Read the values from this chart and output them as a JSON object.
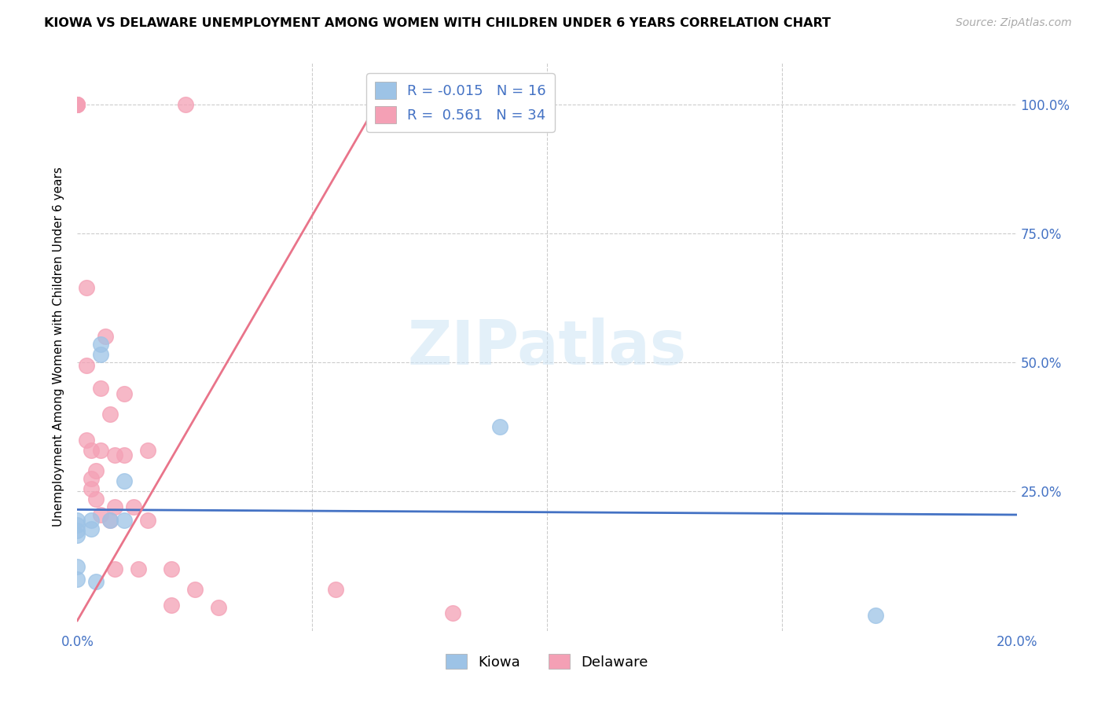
{
  "title": "KIOWA VS DELAWARE UNEMPLOYMENT AMONG WOMEN WITH CHILDREN UNDER 6 YEARS CORRELATION CHART",
  "source": "Source: ZipAtlas.com",
  "ylabel": "Unemployment Among Women with Children Under 6 years",
  "kiowa_R": -0.015,
  "kiowa_N": 16,
  "delaware_R": 0.561,
  "delaware_N": 34,
  "kiowa_color": "#9dc3e6",
  "delaware_color": "#f4a0b5",
  "kiowa_line_color": "#4472c4",
  "delaware_line_color": "#e9748a",
  "xlim": [
    0.0,
    0.2
  ],
  "ylim": [
    -0.02,
    1.08
  ],
  "kiowa_x": [
    0.0,
    0.0,
    0.0,
    0.0,
    0.0,
    0.0,
    0.003,
    0.003,
    0.004,
    0.005,
    0.005,
    0.007,
    0.01,
    0.01,
    0.09,
    0.17
  ],
  "kiowa_y": [
    0.195,
    0.185,
    0.175,
    0.165,
    0.105,
    0.08,
    0.195,
    0.178,
    0.075,
    0.535,
    0.515,
    0.195,
    0.27,
    0.195,
    0.375,
    0.01
  ],
  "delaware_x": [
    0.0,
    0.0,
    0.0,
    0.0,
    0.002,
    0.002,
    0.002,
    0.003,
    0.003,
    0.003,
    0.004,
    0.004,
    0.005,
    0.005,
    0.005,
    0.006,
    0.007,
    0.007,
    0.008,
    0.008,
    0.008,
    0.01,
    0.01,
    0.012,
    0.013,
    0.015,
    0.015,
    0.02,
    0.02,
    0.023,
    0.025,
    0.03,
    0.055,
    0.08
  ],
  "delaware_y": [
    1.0,
    1.0,
    1.0,
    1.0,
    0.645,
    0.495,
    0.35,
    0.33,
    0.275,
    0.255,
    0.29,
    0.235,
    0.45,
    0.33,
    0.205,
    0.55,
    0.4,
    0.195,
    0.32,
    0.22,
    0.1,
    0.44,
    0.32,
    0.22,
    0.1,
    0.33,
    0.195,
    0.1,
    0.03,
    1.0,
    0.06,
    0.025,
    0.06,
    0.015
  ],
  "kiowa_line_x": [
    0.0,
    0.2
  ],
  "kiowa_line_y": [
    0.215,
    0.205
  ],
  "delaware_line_x": [
    0.0,
    0.065
  ],
  "delaware_line_y": [
    0.0,
    1.02
  ]
}
